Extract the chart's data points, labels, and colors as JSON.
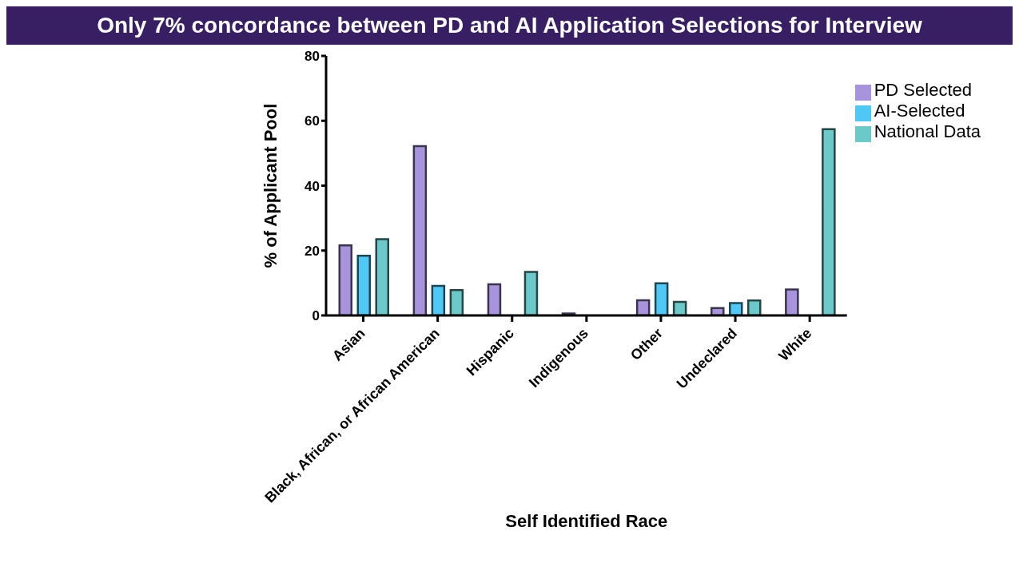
{
  "chart_data": {
    "type": "bar",
    "title": "Only 7% concordance between PD and AI Application Selections for Interview",
    "xlabel": "Self Identified Race",
    "ylabel": "% of Applicant Pool",
    "categories": [
      "Asian",
      "Black, African, or African American",
      "Hispanic",
      "Indigenous",
      "Other",
      "Undeclared",
      "White"
    ],
    "series": [
      {
        "name": "PD Selected",
        "color": "#a894dc",
        "values": [
          21.6,
          52.2,
          9.6,
          0.6,
          4.7,
          2.3,
          8.0
        ]
      },
      {
        "name": "AI-Selected",
        "color": "#4fc8f5",
        "values": [
          18.4,
          9.1,
          null,
          0,
          9.9,
          3.8,
          null
        ]
      },
      {
        "name": "National Data",
        "color": "#6cc9c9",
        "values": [
          23.5,
          7.8,
          13.4,
          0,
          4.2,
          4.6,
          57.4
        ]
      }
    ],
    "ylim": [
      0,
      80
    ],
    "yticks": [
      0,
      20,
      40,
      60,
      80
    ],
    "grid": false,
    "legend": "right"
  }
}
